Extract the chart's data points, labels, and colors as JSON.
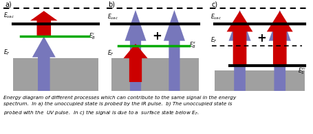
{
  "fig_width": 4.55,
  "fig_height": 1.96,
  "dpi": 100,
  "bg_color": "#ffffff",
  "gray_color": "#a0a0a0",
  "black_color": "#000000",
  "green_color": "#00aa00",
  "red_color": "#cc0000",
  "purple_color": "#7777bb",
  "panels": [
    "a)",
    "b)",
    "c)"
  ]
}
